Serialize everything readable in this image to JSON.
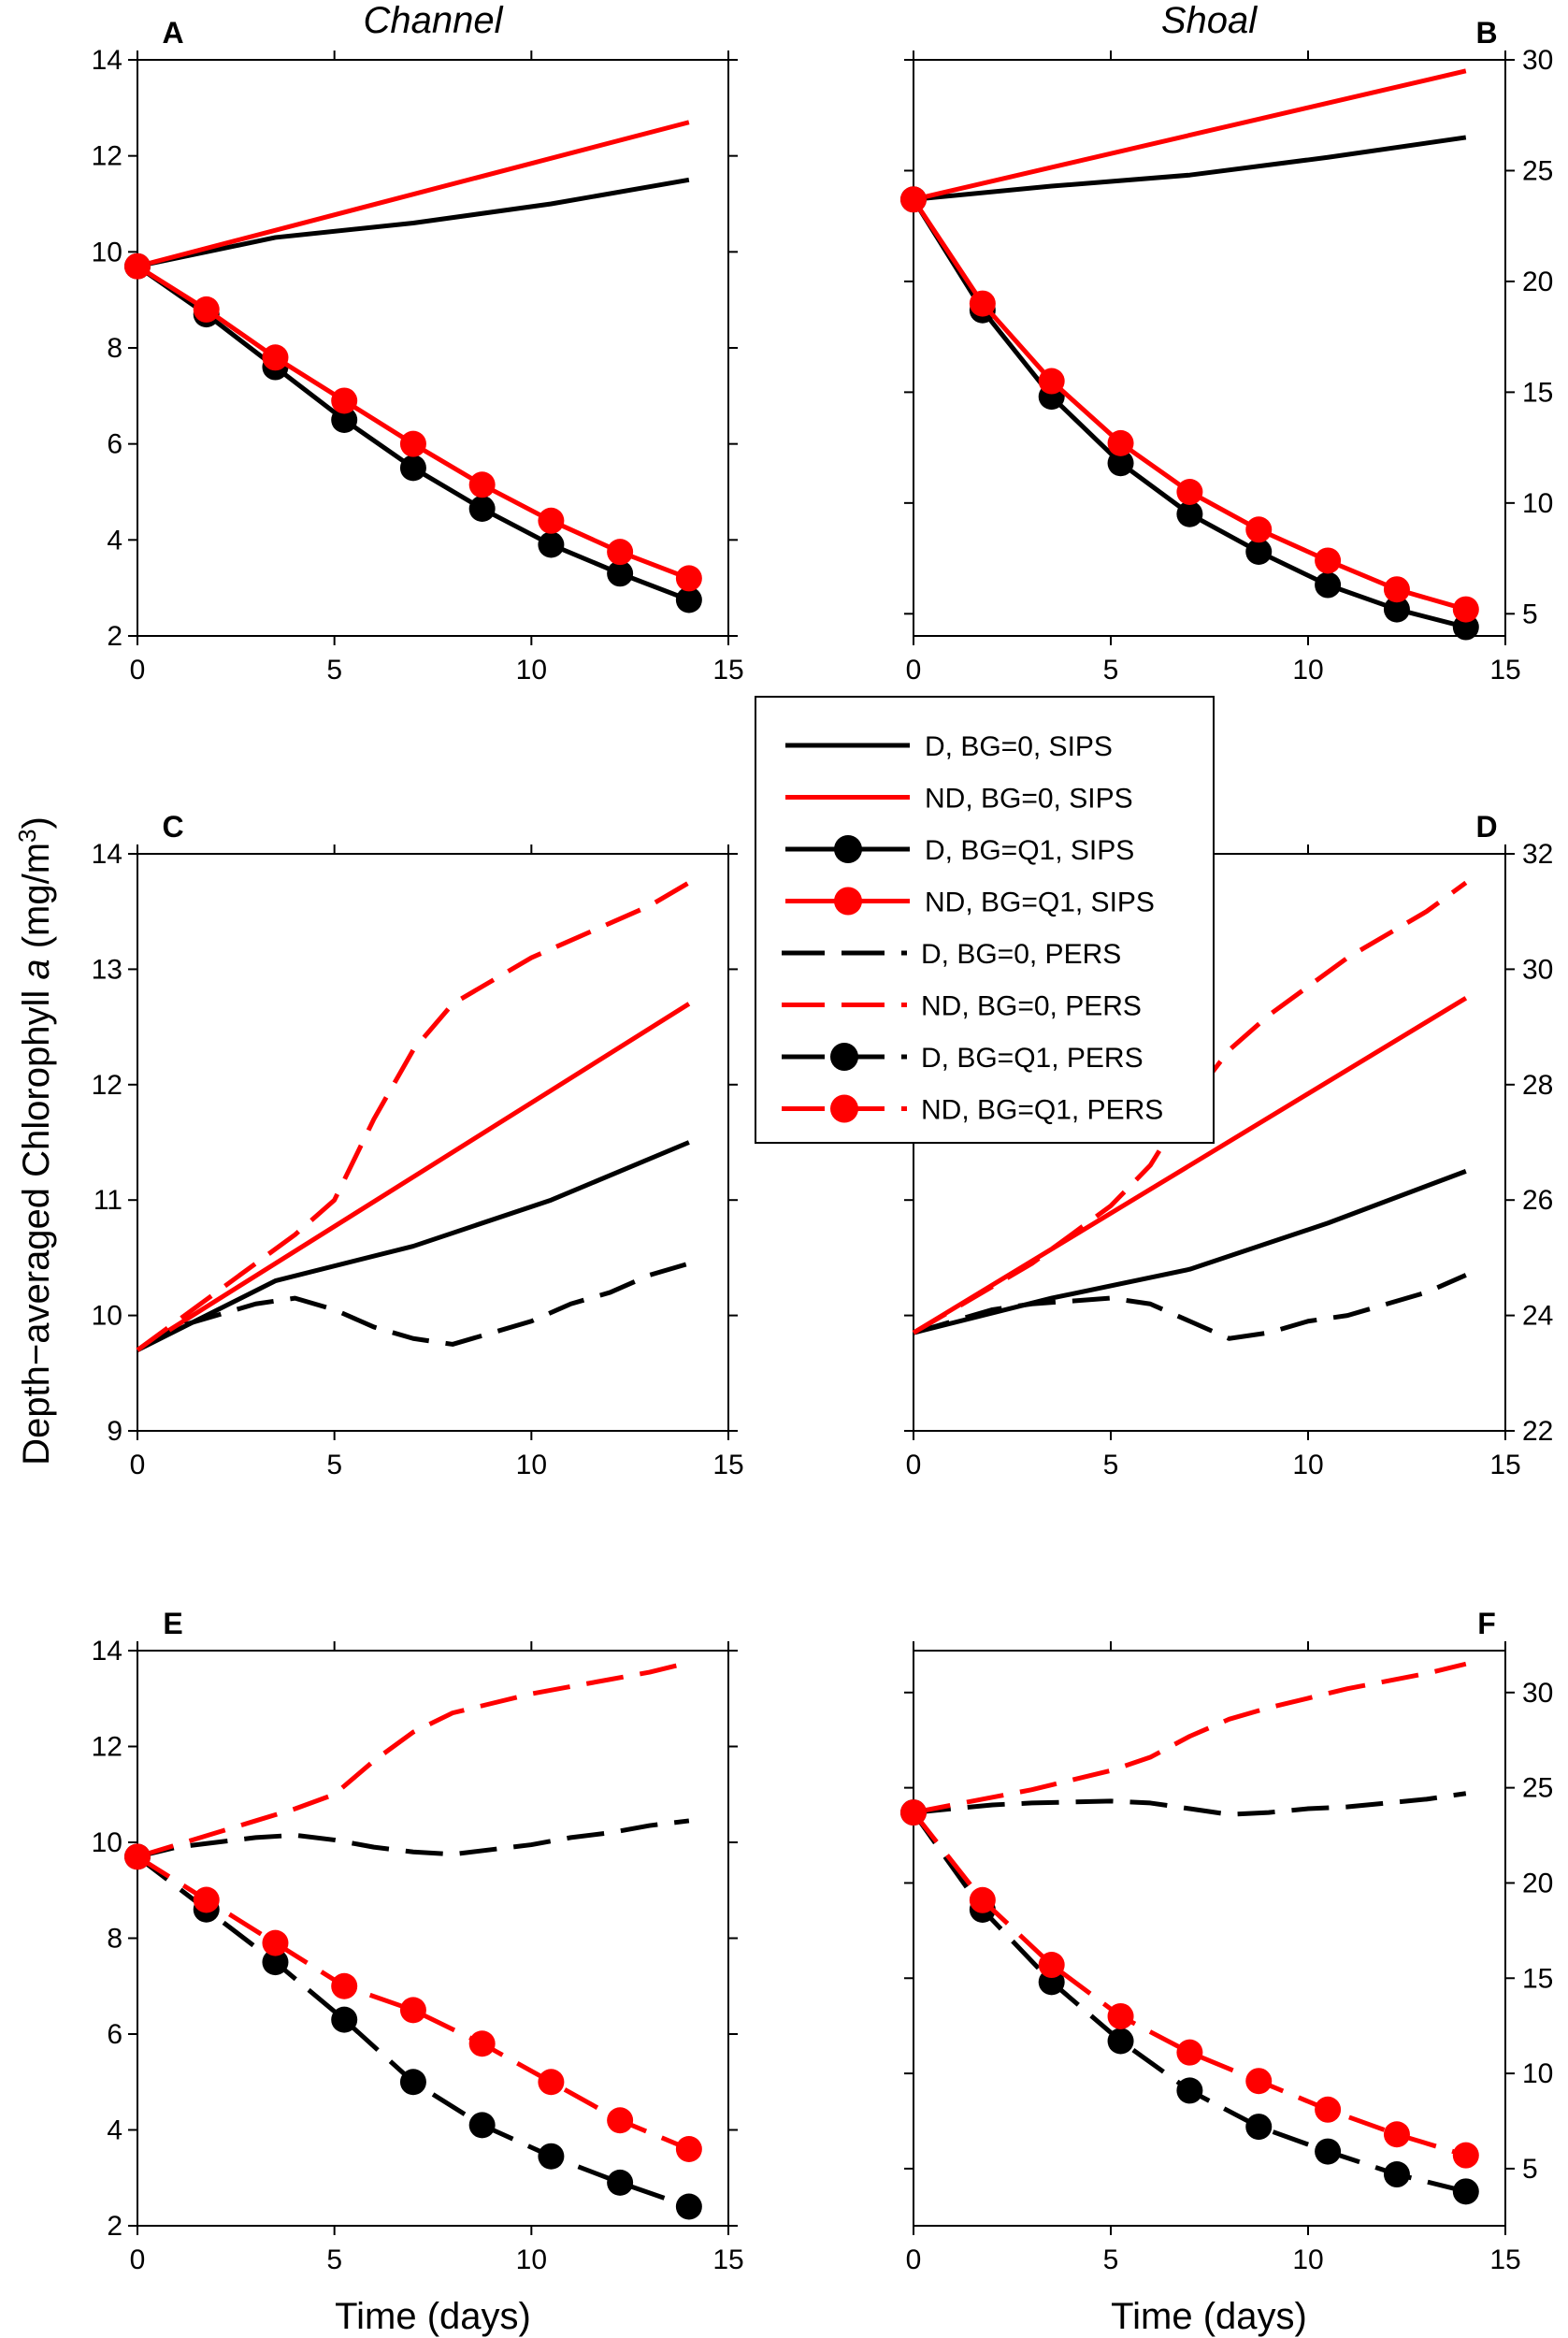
{
  "figure": {
    "ylabel_main": "Depth−averaged Chlorophyll ",
    "ylabel_italic": "a",
    "ylabel_unit": " (mg/m",
    "ylabel_sup": "3",
    "ylabel_close": ")",
    "xlabel": "Time (days)",
    "column_titles": [
      "Channel",
      "Shoal"
    ]
  },
  "legend": [
    {
      "label": "D, BG=0, SIPS",
      "color": "#000000",
      "dashed": false,
      "marker": false
    },
    {
      "label": "ND, BG=0, SIPS",
      "color": "#ff0000",
      "dashed": false,
      "marker": false
    },
    {
      "label": "D, BG=Q1, SIPS",
      "color": "#000000",
      "dashed": false,
      "marker": true
    },
    {
      "label": "ND, BG=Q1, SIPS",
      "color": "#ff0000",
      "dashed": false,
      "marker": true
    },
    {
      "label": "D, BG=0, PERS",
      "color": "#000000",
      "dashed": true,
      "marker": false
    },
    {
      "label": "ND, BG=0, PERS",
      "color": "#ff0000",
      "dashed": true,
      "marker": false
    },
    {
      "label": "D, BG=Q1, PERS",
      "color": "#000000",
      "dashed": true,
      "marker": true
    },
    {
      "label": "ND, BG=Q1, PERS",
      "color": "#ff0000",
      "dashed": true,
      "marker": true
    }
  ],
  "chart_data": [
    {
      "type": "line",
      "panel": "A",
      "title": "Channel",
      "xlabel": "",
      "ylabel": "",
      "xlim": [
        0,
        15
      ],
      "xticks": [
        0,
        5,
        10,
        15
      ],
      "ylim": [
        2,
        14
      ],
      "yticks": [
        2,
        4,
        6,
        8,
        10,
        12,
        14
      ],
      "yaxis_side": "left",
      "series": [
        {
          "legend": 0,
          "x": [
            0,
            3.5,
            7,
            10.5,
            14
          ],
          "y": [
            9.7,
            10.3,
            10.6,
            11.0,
            11.5
          ]
        },
        {
          "legend": 1,
          "x": [
            0,
            14
          ],
          "y": [
            9.7,
            12.7
          ]
        },
        {
          "legend": 2,
          "x": [
            0,
            1.75,
            3.5,
            5.25,
            7,
            8.75,
            10.5,
            12.25,
            14
          ],
          "y": [
            9.7,
            8.7,
            7.6,
            6.5,
            5.5,
            4.65,
            3.9,
            3.3,
            2.75
          ]
        },
        {
          "legend": 3,
          "x": [
            0,
            1.75,
            3.5,
            5.25,
            7,
            8.75,
            10.5,
            12.25,
            14
          ],
          "y": [
            9.7,
            8.8,
            7.8,
            6.9,
            6.0,
            5.15,
            4.4,
            3.75,
            3.2
          ]
        }
      ]
    },
    {
      "type": "line",
      "panel": "B",
      "title": "Shoal",
      "xlabel": "",
      "ylabel": "",
      "xlim": [
        0,
        15
      ],
      "xticks": [
        0,
        5,
        10,
        15
      ],
      "ylim": [
        4,
        30
      ],
      "yticks": [
        5,
        10,
        15,
        20,
        25,
        30
      ],
      "yaxis_side": "right",
      "series": [
        {
          "legend": 0,
          "x": [
            0,
            3.5,
            7,
            10.5,
            14
          ],
          "y": [
            23.7,
            24.3,
            24.8,
            25.6,
            26.5
          ]
        },
        {
          "legend": 1,
          "x": [
            0,
            14
          ],
          "y": [
            23.7,
            29.5
          ]
        },
        {
          "legend": 2,
          "x": [
            0,
            1.75,
            3.5,
            5.25,
            7,
            8.75,
            10.5,
            12.25,
            14
          ],
          "y": [
            23.7,
            18.7,
            14.8,
            11.8,
            9.5,
            7.8,
            6.3,
            5.2,
            4.4
          ]
        },
        {
          "legend": 3,
          "x": [
            0,
            1.75,
            3.5,
            5.25,
            7,
            8.75,
            10.5,
            12.25,
            14
          ],
          "y": [
            23.7,
            19.0,
            15.5,
            12.7,
            10.5,
            8.8,
            7.4,
            6.1,
            5.2
          ]
        }
      ]
    },
    {
      "type": "line",
      "panel": "C",
      "title": "",
      "xlabel": "",
      "ylabel": "",
      "xlim": [
        0,
        15
      ],
      "xticks": [
        0,
        5,
        10,
        15
      ],
      "ylim": [
        9,
        14
      ],
      "yticks": [
        9,
        10,
        11,
        12,
        13,
        14
      ],
      "yaxis_side": "left",
      "series": [
        {
          "legend": 0,
          "x": [
            0,
            3.5,
            7,
            10.5,
            14
          ],
          "y": [
            9.7,
            10.3,
            10.6,
            11.0,
            11.5
          ]
        },
        {
          "legend": 1,
          "x": [
            0,
            14
          ],
          "y": [
            9.7,
            12.7
          ]
        },
        {
          "legend": 4,
          "x": [
            0,
            1,
            2,
            3,
            4,
            5,
            6,
            7,
            8,
            9,
            10,
            11,
            12,
            13,
            14
          ],
          "y": [
            9.7,
            9.9,
            10.0,
            10.1,
            10.15,
            10.05,
            9.9,
            9.8,
            9.75,
            9.85,
            9.95,
            10.1,
            10.2,
            10.35,
            10.45
          ]
        },
        {
          "legend": 5,
          "x": [
            0,
            1,
            2,
            3,
            4,
            5,
            6,
            7,
            8,
            9,
            10,
            11,
            12,
            13,
            14
          ],
          "y": [
            9.7,
            9.95,
            10.2,
            10.45,
            10.7,
            11.0,
            11.7,
            12.3,
            12.7,
            12.9,
            13.1,
            13.25,
            13.4,
            13.55,
            13.75
          ]
        }
      ]
    },
    {
      "type": "line",
      "panel": "D",
      "title": "",
      "xlabel": "",
      "ylabel": "",
      "xlim": [
        0,
        15
      ],
      "xticks": [
        0,
        5,
        10,
        15
      ],
      "ylim": [
        22,
        32
      ],
      "yticks": [
        22,
        24,
        26,
        28,
        30,
        32
      ],
      "yaxis_side": "right",
      "series": [
        {
          "legend": 0,
          "x": [
            0,
            3.5,
            7,
            10.5,
            14
          ],
          "y": [
            23.7,
            24.3,
            24.8,
            25.6,
            26.5
          ]
        },
        {
          "legend": 1,
          "x": [
            0,
            14
          ],
          "y": [
            23.7,
            29.5
          ]
        },
        {
          "legend": 4,
          "x": [
            0,
            1,
            2,
            3,
            4,
            5,
            6,
            7,
            8,
            9,
            10,
            11,
            12,
            13,
            14
          ],
          "y": [
            23.7,
            23.9,
            24.1,
            24.2,
            24.25,
            24.3,
            24.2,
            23.9,
            23.6,
            23.7,
            23.9,
            24.0,
            24.2,
            24.4,
            24.7
          ]
        },
        {
          "legend": 5,
          "x": [
            0,
            1,
            2,
            3,
            4,
            5,
            6,
            7,
            8,
            9,
            10,
            11,
            12,
            13,
            14
          ],
          "y": [
            23.7,
            24.1,
            24.5,
            24.9,
            25.4,
            25.9,
            26.6,
            27.7,
            28.6,
            29.2,
            29.7,
            30.2,
            30.6,
            31.0,
            31.5
          ]
        }
      ]
    },
    {
      "type": "line",
      "panel": "E",
      "title": "",
      "xlabel": "Time (days)",
      "ylabel": "",
      "xlim": [
        0,
        15
      ],
      "xticks": [
        0,
        5,
        10,
        15
      ],
      "ylim": [
        2,
        14
      ],
      "yticks": [
        2,
        4,
        6,
        8,
        10,
        12,
        14
      ],
      "yaxis_side": "left",
      "series": [
        {
          "legend": 4,
          "x": [
            0,
            1,
            2,
            3,
            4,
            5,
            6,
            7,
            8,
            9,
            10,
            11,
            12,
            13,
            14
          ],
          "y": [
            9.7,
            9.9,
            10.0,
            10.1,
            10.15,
            10.05,
            9.9,
            9.8,
            9.75,
            9.85,
            9.95,
            10.1,
            10.2,
            10.35,
            10.45
          ]
        },
        {
          "legend": 5,
          "x": [
            0,
            1,
            2,
            3,
            4,
            5,
            6,
            7,
            8,
            9,
            10,
            11,
            12,
            13,
            14
          ],
          "y": [
            9.7,
            9.95,
            10.2,
            10.45,
            10.7,
            11.0,
            11.7,
            12.3,
            12.7,
            12.9,
            13.1,
            13.25,
            13.4,
            13.55,
            13.75
          ]
        },
        {
          "legend": 6,
          "x": [
            0,
            1.75,
            3.5,
            5.25,
            7,
            8.75,
            10.5,
            12.25,
            14
          ],
          "y": [
            9.7,
            8.6,
            7.5,
            6.3,
            5.0,
            4.1,
            3.45,
            2.9,
            2.4
          ]
        },
        {
          "legend": 7,
          "x": [
            0,
            1.75,
            3.5,
            5.25,
            7,
            8.75,
            10.5,
            12.25,
            14
          ],
          "y": [
            9.7,
            8.8,
            7.9,
            7.0,
            6.5,
            5.8,
            5.0,
            4.2,
            3.6
          ]
        }
      ]
    },
    {
      "type": "line",
      "panel": "F",
      "title": "",
      "xlabel": "Time (days)",
      "ylabel": "",
      "xlim": [
        0,
        15
      ],
      "xticks": [
        0,
        5,
        10,
        15
      ],
      "ylim": [
        2,
        32.2
      ],
      "yticks": [
        5,
        10,
        15,
        20,
        25,
        30
      ],
      "yaxis_side": "right",
      "series": [
        {
          "legend": 4,
          "x": [
            0,
            1,
            2,
            3,
            4,
            5,
            6,
            7,
            8,
            9,
            10,
            11,
            12,
            13,
            14
          ],
          "y": [
            23.7,
            23.9,
            24.1,
            24.2,
            24.25,
            24.3,
            24.2,
            23.9,
            23.6,
            23.7,
            23.9,
            24.0,
            24.2,
            24.4,
            24.7
          ]
        },
        {
          "legend": 5,
          "x": [
            0,
            1,
            2,
            3,
            4,
            5,
            6,
            7,
            8,
            9,
            10,
            11,
            12,
            13,
            14
          ],
          "y": [
            23.7,
            24.1,
            24.5,
            24.9,
            25.4,
            25.9,
            26.6,
            27.7,
            28.6,
            29.2,
            29.7,
            30.2,
            30.6,
            31.0,
            31.5
          ]
        },
        {
          "legend": 6,
          "x": [
            0,
            1.75,
            3.5,
            5.25,
            7,
            8.75,
            10.5,
            12.25,
            14
          ],
          "y": [
            23.7,
            18.6,
            14.8,
            11.7,
            9.1,
            7.2,
            5.9,
            4.7,
            3.8
          ]
        },
        {
          "legend": 7,
          "x": [
            0,
            1.75,
            3.5,
            5.25,
            7,
            8.75,
            10.5,
            12.25,
            14
          ],
          "y": [
            23.7,
            19.1,
            15.7,
            13.0,
            11.1,
            9.6,
            8.1,
            6.8,
            5.7
          ]
        }
      ]
    }
  ]
}
